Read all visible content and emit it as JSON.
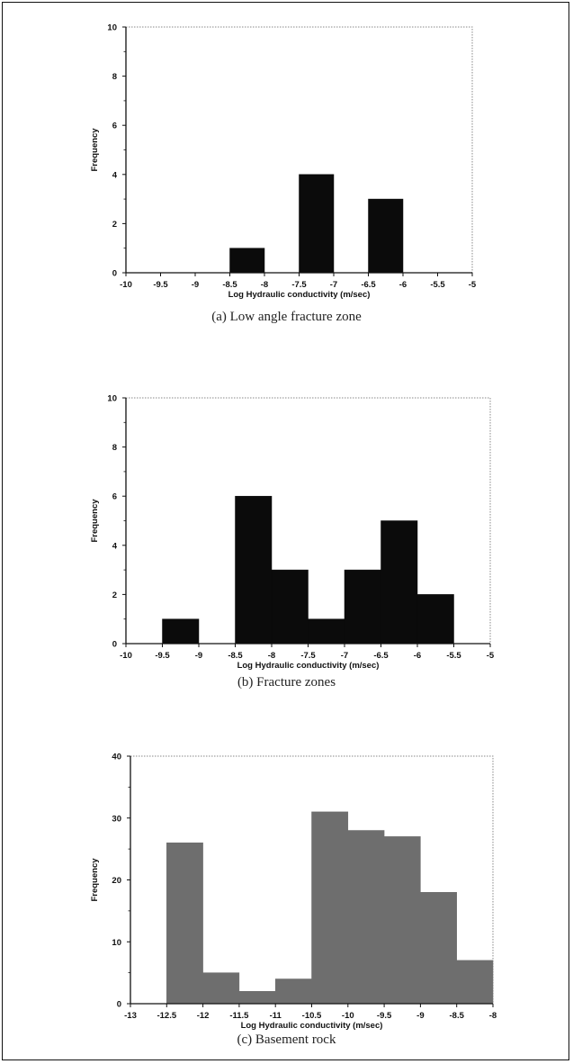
{
  "chart_data": [
    {
      "type": "bar",
      "title": "",
      "caption": "(a) Low angle fracture zone",
      "xlabel": "Log Hydraulic conductivity (m/sec)",
      "ylabel": "Frequency",
      "xlim": [
        -10,
        -5
      ],
      "ylim": [
        0,
        10
      ],
      "xticks": [
        -10,
        -9.5,
        -9,
        -8.5,
        -8,
        -7.5,
        -7,
        -6.5,
        -6,
        -5.5,
        -5
      ],
      "xtick_labels": [
        "-10",
        "-9.5",
        "-9",
        "-8.5",
        "-8",
        "-7.5",
        "-7",
        "-6.5",
        "-6",
        "-5.5",
        "-5"
      ],
      "yticks": [
        0,
        2,
        4,
        6,
        8,
        10
      ],
      "ytick_labels": [
        "0",
        "2",
        "4",
        "6",
        "8",
        "10"
      ],
      "bin_width": 0.5,
      "bins": [
        {
          "from": -8.5,
          "to": -8.0,
          "value": 1
        },
        {
          "from": -7.5,
          "to": -7.0,
          "value": 4
        },
        {
          "from": -6.5,
          "to": -6.0,
          "value": 3
        }
      ],
      "bar_color": "#0b0b0b",
      "grid": false
    },
    {
      "type": "bar",
      "title": "",
      "caption": "(b) Fracture zones",
      "xlabel": "Log Hydraulic conductivity (m/sec)",
      "ylabel": "Frequency",
      "xlim": [
        -10,
        -5
      ],
      "ylim": [
        0,
        10
      ],
      "xticks": [
        -10,
        -9.5,
        -9,
        -8.5,
        -8,
        -7.5,
        -7,
        -6.5,
        -6,
        -5.5,
        -5
      ],
      "xtick_labels": [
        "-10",
        "-9.5",
        "-9",
        "-8.5",
        "-8",
        "-7.5",
        "-7",
        "-6.5",
        "-6",
        "-5.5",
        "-5"
      ],
      "yticks": [
        0,
        2,
        4,
        6,
        8,
        10
      ],
      "ytick_labels": [
        "0",
        "2",
        "4",
        "6",
        "8",
        "10"
      ],
      "bin_width": 0.5,
      "bins": [
        {
          "from": -9.5,
          "to": -9.0,
          "value": 1
        },
        {
          "from": -8.5,
          "to": -8.0,
          "value": 6
        },
        {
          "from": -8.0,
          "to": -7.5,
          "value": 3
        },
        {
          "from": -7.5,
          "to": -7.0,
          "value": 1
        },
        {
          "from": -7.0,
          "to": -6.5,
          "value": 3
        },
        {
          "from": -6.5,
          "to": -6.0,
          "value": 5
        },
        {
          "from": -6.0,
          "to": -5.5,
          "value": 2
        }
      ],
      "bar_color": "#0b0b0b",
      "grid": false
    },
    {
      "type": "bar",
      "title": "",
      "caption": "(c) Basement rock",
      "xlabel": "Log Hydraulic conductivity (m/sec)",
      "ylabel": "Frequency",
      "xlim": [
        -13,
        -8
      ],
      "ylim": [
        0,
        40
      ],
      "xticks": [
        -13,
        -12.5,
        -12,
        -11.5,
        -11,
        -10.5,
        -10,
        -9.5,
        -9,
        -8.5,
        -8
      ],
      "xtick_labels": [
        "-13",
        "-12.5",
        "-12",
        "-11.5",
        "-11",
        "-10.5",
        "-10",
        "-9.5",
        "-9",
        "-8.5",
        "-8"
      ],
      "yticks": [
        0,
        10,
        20,
        30,
        40
      ],
      "ytick_labels": [
        "0",
        "10",
        "20",
        "30",
        "40"
      ],
      "bin_width": 0.5,
      "bins": [
        {
          "from": -12.5,
          "to": -12.0,
          "value": 26
        },
        {
          "from": -12.0,
          "to": -11.5,
          "value": 5
        },
        {
          "from": -11.5,
          "to": -11.0,
          "value": 2
        },
        {
          "from": -11.0,
          "to": -10.5,
          "value": 4
        },
        {
          "from": -10.5,
          "to": -10.0,
          "value": 31
        },
        {
          "from": -10.0,
          "to": -9.5,
          "value": 28
        },
        {
          "from": -9.5,
          "to": -9.0,
          "value": 27
        },
        {
          "from": -9.0,
          "to": -8.5,
          "value": 18
        },
        {
          "from": -8.5,
          "to": -8.0,
          "value": 7
        }
      ],
      "bar_color": "#6e6e6e",
      "grid": false
    }
  ]
}
